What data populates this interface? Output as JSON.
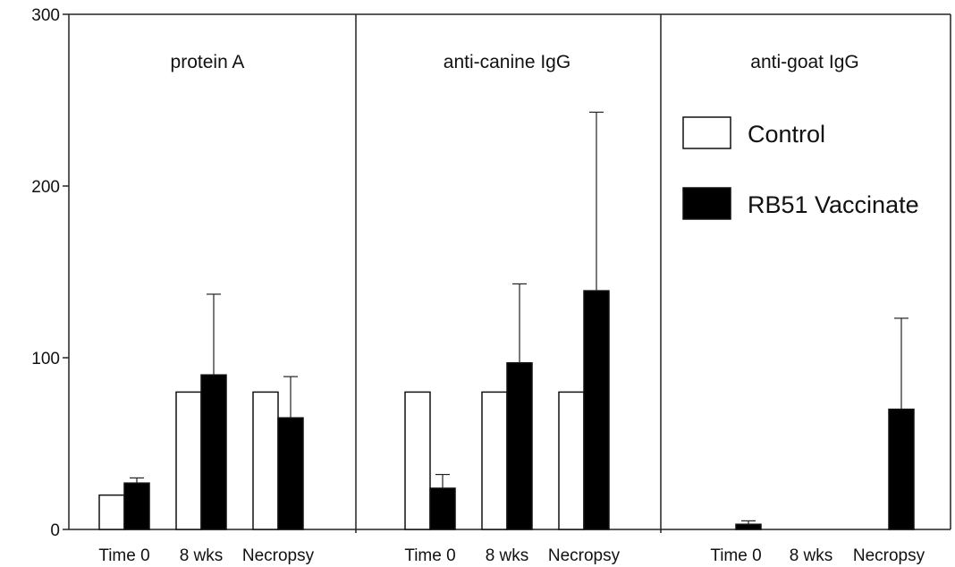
{
  "chart_data": {
    "type": "bar",
    "ylim": [
      0,
      300
    ],
    "yticks": [
      0,
      100,
      200,
      300
    ],
    "ytick_labels": [
      "0",
      "100",
      "200",
      "300"
    ],
    "grid": false,
    "legend_placement": "inside third panel, upper area",
    "legend": [
      {
        "label": "Control",
        "color": "#ffffff"
      },
      {
        "label": "RB51 Vaccinate",
        "color": "#000000"
      }
    ],
    "panels": [
      {
        "title": "protein A",
        "categories": [
          "Time 0",
          "8 wks",
          "Necropsy"
        ],
        "series": [
          {
            "name": "Control",
            "values": [
              20,
              80,
              80
            ],
            "errors": [
              0,
              0,
              0
            ]
          },
          {
            "name": "RB51 Vaccinate",
            "values": [
              27,
              90,
              65
            ],
            "errors": [
              3,
              47,
              24
            ]
          }
        ]
      },
      {
        "title": "anti-canine IgG",
        "categories": [
          "Time 0",
          "8 wks",
          "Necropsy"
        ],
        "series": [
          {
            "name": "Control",
            "values": [
              80,
              80,
              80
            ],
            "errors": [
              0,
              0,
              0
            ]
          },
          {
            "name": "RB51 Vaccinate",
            "values": [
              24,
              97,
              139
            ],
            "errors": [
              8,
              46,
              104
            ]
          }
        ]
      },
      {
        "title": "anti-goat IgG",
        "categories": [
          "Time 0",
          "8 wks",
          "Necropsy"
        ],
        "series": [
          {
            "name": "Control",
            "values": [
              null,
              null,
              null
            ],
            "errors": [
              0,
              0,
              0
            ]
          },
          {
            "name": "RB51 Vaccinate",
            "values": [
              3,
              null,
              70
            ],
            "errors": [
              2,
              0,
              53
            ]
          }
        ]
      }
    ]
  }
}
